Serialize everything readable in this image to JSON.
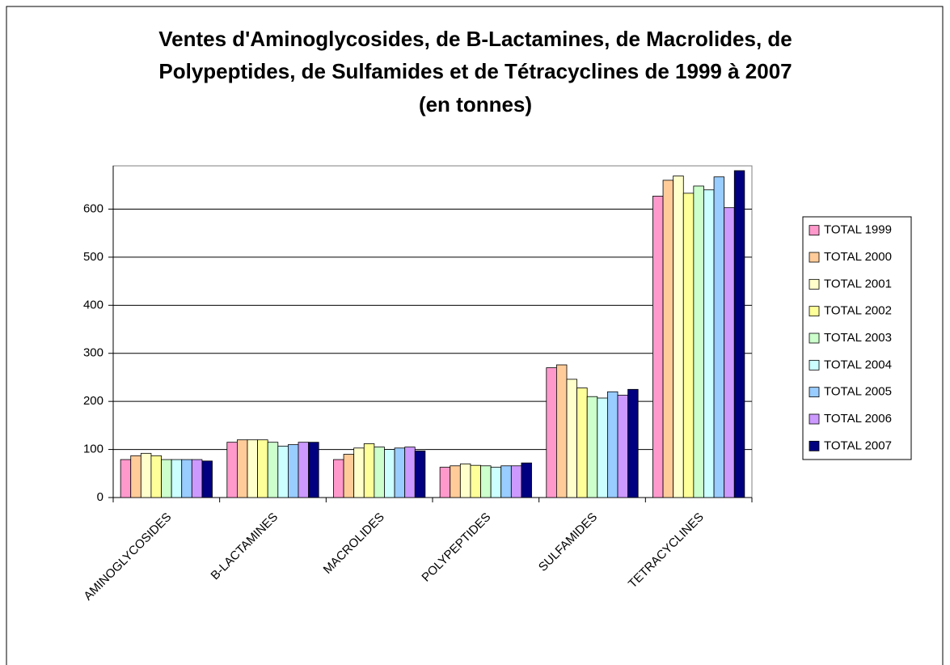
{
  "chart_data": {
    "type": "bar",
    "title": [
      "Ventes d'Aminoglycosides, de B-Lactamines, de Macrolides, de",
      "Polypeptides, de Sulfamides et de Tétracyclines de 1999 à 2007",
      "(en tonnes)"
    ],
    "categories": [
      "AMINOGLYCOSIDES",
      "B-LACTAMINES",
      "MACROLIDES",
      "POLYPEPTIDES",
      "SULFAMIDES",
      "TETRACYCLINES"
    ],
    "series": [
      {
        "name": "TOTAL 1999",
        "color": "#ff99cc",
        "values": [
          79,
          115,
          79,
          63,
          270,
          627
        ]
      },
      {
        "name": "TOTAL 2000",
        "color": "#ffcc99",
        "values": [
          87,
          120,
          90,
          66,
          276,
          660
        ]
      },
      {
        "name": "TOTAL 2001",
        "color": "#ffffcc",
        "values": [
          92,
          120,
          103,
          70,
          246,
          669
        ]
      },
      {
        "name": "TOTAL 2002",
        "color": "#ffff99",
        "values": [
          87,
          120,
          112,
          67,
          228,
          633
        ]
      },
      {
        "name": "TOTAL 2003",
        "color": "#ccffcc",
        "values": [
          79,
          115,
          105,
          66,
          210,
          648
        ]
      },
      {
        "name": "TOTAL 2004",
        "color": "#ccffff",
        "values": [
          79,
          107,
          100,
          63,
          207,
          640
        ]
      },
      {
        "name": "TOTAL 2005",
        "color": "#99ccff",
        "values": [
          79,
          110,
          103,
          66,
          220,
          667
        ]
      },
      {
        "name": "TOTAL 2006",
        "color": "#cc99ff",
        "values": [
          79,
          115,
          105,
          66,
          213,
          603
        ]
      },
      {
        "name": "TOTAL 2007",
        "color": "#000080",
        "values": [
          76,
          115,
          97,
          72,
          225,
          680
        ]
      }
    ],
    "ylim": [
      0,
      690
    ],
    "yticks": [
      0,
      100,
      200,
      300,
      400,
      500,
      600
    ],
    "grid": true,
    "legend": "right"
  }
}
